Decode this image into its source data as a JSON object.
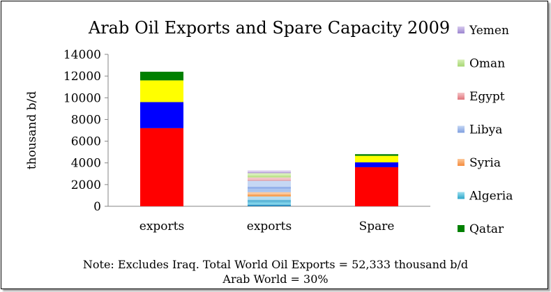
{
  "chart_data": {
    "type": "bar",
    "stacked": true,
    "title": "Arab Oil Exports and Spare Capacity 2009",
    "ylabel": "thousand b/d",
    "xlabel": "",
    "ylim": [
      0,
      14000
    ],
    "yticks": [
      0,
      2000,
      4000,
      6000,
      8000,
      10000,
      12000,
      14000
    ],
    "grid": false,
    "legend_position": "right",
    "categories": [
      "exports",
      "exports",
      "Spare"
    ],
    "segments": [
      [
        {
          "color": "#ff0000",
          "value": 7200
        },
        {
          "color": "#0000ff",
          "value": 2400
        },
        {
          "color": "#ffff00",
          "value": 2000
        },
        {
          "color": "#008000",
          "value": 800
        }
      ],
      [
        {
          "color": "#2f8fc0",
          "value": 150
        },
        {
          "color": "#7fd3ea",
          "value": 200
        },
        {
          "color": "#5fb8d8",
          "value": 250
        },
        {
          "color": "#b8dcf0",
          "value": 300
        },
        {
          "color": "#f6a35a",
          "value": 200
        },
        {
          "color": "#fbc79a",
          "value": 200
        },
        {
          "color": "#a9c3ee",
          "value": 300
        },
        {
          "color": "#95b2ea",
          "value": 200
        },
        {
          "color": "#c5d7f4",
          "value": 550
        },
        {
          "color": "#e69aa0",
          "value": 100
        },
        {
          "color": "#f2c4c8",
          "value": 200
        },
        {
          "color": "#bfe38e",
          "value": 200
        },
        {
          "color": "#d8f0b8",
          "value": 200
        },
        {
          "color": "#b9a2dc",
          "value": 100
        },
        {
          "color": "#d8cbee",
          "value": 150
        }
      ],
      [
        {
          "color": "#ff0000",
          "value": 3600
        },
        {
          "color": "#0000ff",
          "value": 450
        },
        {
          "color": "#ffff00",
          "value": 600
        },
        {
          "color": "#008000",
          "value": 150
        }
      ]
    ],
    "legend": [
      {
        "label": "Yemen",
        "colors": [
          "#d8cbee",
          "#9b84cf"
        ]
      },
      {
        "label": "Oman",
        "colors": [
          "#d8f0b8",
          "#a6d672"
        ]
      },
      {
        "label": "Egypt",
        "colors": [
          "#f5c6c9",
          "#e0747b"
        ]
      },
      {
        "label": "Libya",
        "colors": [
          "#c5d7f4",
          "#7f9fdf"
        ]
      },
      {
        "label": "Syria",
        "colors": [
          "#fcc99c",
          "#f58b3c"
        ]
      },
      {
        "label": "Algeria",
        "colors": [
          "#9fe0f0",
          "#2aa5c8"
        ]
      },
      {
        "label": "Qatar",
        "colors": [
          "#008000",
          "#008000"
        ]
      }
    ]
  },
  "note": {
    "line1": "Note: Excludes Iraq. Total World Oil Exports = 52,333 thousand b/d",
    "line2": "Arab World = 30%"
  }
}
